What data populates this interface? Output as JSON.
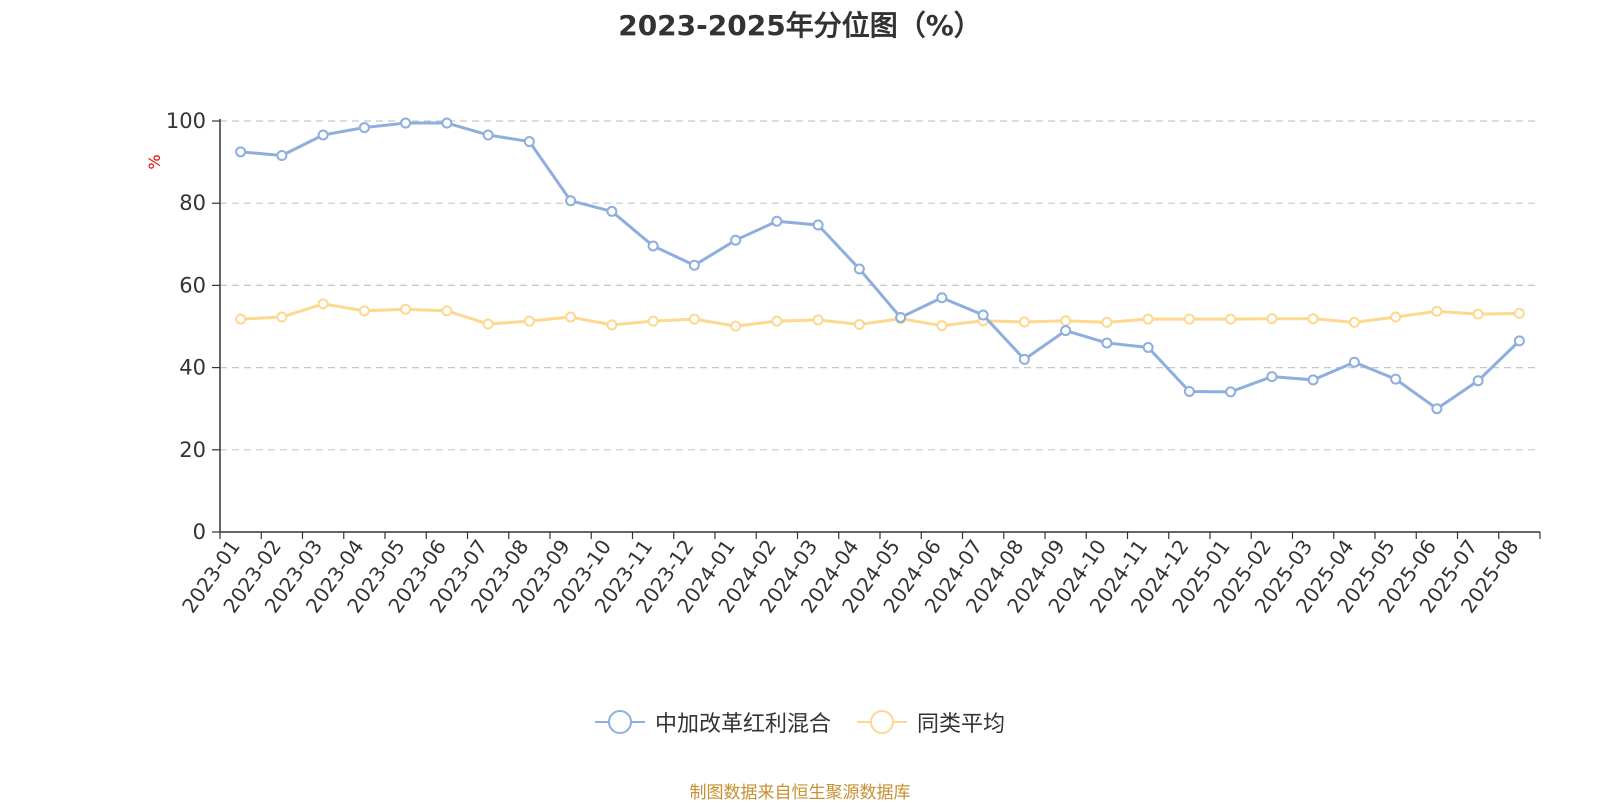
{
  "chart_data": {
    "type": "line",
    "title": "2023-2025年分位图（%）",
    "ylabel": "%",
    "xlabel": "",
    "ylim": [
      0,
      100
    ],
    "yticks": [
      0,
      20,
      40,
      60,
      80,
      100
    ],
    "grid": true,
    "legend_position": "bottom",
    "categories": [
      "2023-01",
      "2023-02",
      "2023-03",
      "2023-04",
      "2023-05",
      "2023-06",
      "2023-07",
      "2023-08",
      "2023-09",
      "2023-10",
      "2023-11",
      "2023-12",
      "2024-01",
      "2024-02",
      "2024-03",
      "2024-04",
      "2024-05",
      "2024-06",
      "2024-07",
      "2024-08",
      "2024-09",
      "2024-10",
      "2024-11",
      "2024-12",
      "2025-01",
      "2025-02",
      "2025-03",
      "2025-04",
      "2025-05",
      "2025-06",
      "2025-07",
      "2025-08"
    ],
    "series": [
      {
        "name": "中加改革红利混合",
        "color": "#8eaede",
        "values": [
          92.5,
          91.6,
          96.6,
          98.4,
          99.5,
          99.5,
          96.6,
          95.0,
          80.6,
          78.0,
          69.6,
          64.9,
          71.0,
          75.6,
          74.7,
          64.0,
          52.2,
          57.0,
          52.8,
          42.0,
          49.0,
          46.0,
          44.9,
          34.2,
          34.1,
          37.8,
          37.0,
          41.3,
          37.2,
          30.0,
          36.8,
          46.5
        ]
      },
      {
        "name": "同类平均",
        "color": "#fdd88f",
        "values": [
          51.8,
          52.3,
          55.5,
          53.8,
          54.2,
          53.8,
          50.6,
          51.3,
          52.3,
          50.4,
          51.3,
          51.8,
          50.1,
          51.3,
          51.6,
          50.5,
          51.9,
          50.2,
          51.4,
          51.1,
          51.4,
          51.0,
          51.8,
          51.8,
          51.8,
          51.9,
          51.9,
          51.0,
          52.3,
          53.7,
          53.0,
          53.2
        ]
      }
    ]
  },
  "legend": {
    "series1_label": "中加改革红利混合",
    "series2_label": "同类平均"
  },
  "source_text": "制图数据来自恒生聚源数据库"
}
